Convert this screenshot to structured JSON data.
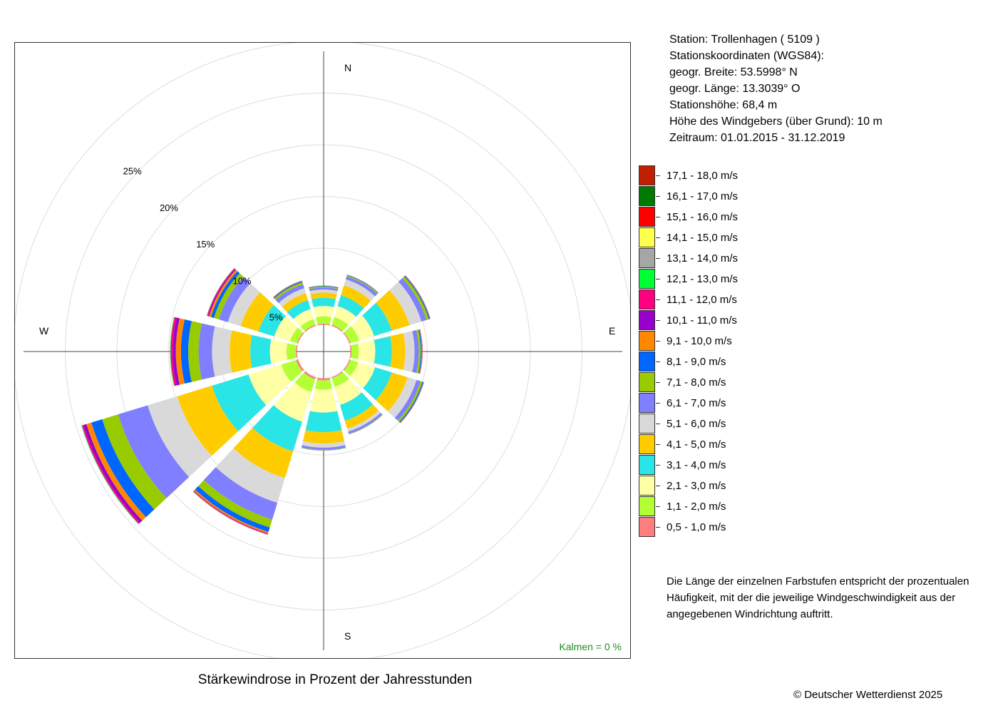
{
  "chart_data": {
    "type": "windrose",
    "title": "Stärkewindrose in Prozent der Jahresstunden",
    "directions_deg": [
      0,
      30,
      60,
      90,
      120,
      150,
      180,
      210,
      240,
      270,
      300,
      330
    ],
    "compass_labels": [
      "N",
      "E",
      "S",
      "W"
    ],
    "radial_ticks": [
      5,
      10,
      15,
      20,
      25
    ],
    "radial_tick_labels": [
      "5%",
      "10%",
      "15%",
      "20%",
      "25%"
    ],
    "inner_radius": 2.6,
    "max_radius": 30,
    "speed_classes": [
      {
        "label": "0,5 - 1,0 m/s",
        "color": "#ff7f7f"
      },
      {
        "label": "1,1 - 2,0 m/s",
        "color": "#b3ff33"
      },
      {
        "label": "2,1 - 3,0 m/s",
        "color": "#ffffa6"
      },
      {
        "label": "3,1 - 4,0 m/s",
        "color": "#29e5e5"
      },
      {
        "label": "4,1 - 5,0 m/s",
        "color": "#ffcc00"
      },
      {
        "label": "5,1 - 6,0 m/s",
        "color": "#d9d9d9"
      },
      {
        "label": "6,1 - 7,0 m/s",
        "color": "#7f7fff"
      },
      {
        "label": "7,1 - 8,0 m/s",
        "color": "#99cc00"
      },
      {
        "label": "8,1 - 9,0 m/s",
        "color": "#0066ff"
      },
      {
        "label": "9,1 - 10,0 m/s",
        "color": "#ff8800"
      },
      {
        "label": "10,1 - 11,0 m/s",
        "color": "#9900cc"
      },
      {
        "label": "11,1 - 12,0 m/s",
        "color": "#ff0080"
      },
      {
        "label": "12,1 - 13,0 m/s",
        "color": "#00ff33"
      },
      {
        "label": "13,1 - 14,0 m/s",
        "color": "#a6a6a6"
      },
      {
        "label": "14,1 - 15,0 m/s",
        "color": "#ffff4d"
      },
      {
        "label": "15,1 - 16,0 m/s",
        "color": "#ff0000"
      },
      {
        "label": "16,1 - 17,0 m/s",
        "color": "#007a00"
      },
      {
        "label": "17,1 - 18,0 m/s",
        "color": "#c02000"
      }
    ],
    "frequencies_percent": [
      [
        0.1,
        0.7,
        1.0,
        0.8,
        0.5,
        0.3,
        0.2,
        0.1,
        0.05,
        0.02,
        0.01,
        0,
        0,
        0,
        0,
        0,
        0,
        0
      ],
      [
        0.1,
        0.8,
        1.1,
        1.1,
        1.0,
        0.6,
        0.3,
        0.1,
        0.05,
        0.02,
        0.01,
        0,
        0,
        0,
        0,
        0,
        0,
        0
      ],
      [
        0.1,
        0.9,
        1.5,
        1.8,
        1.8,
        1.2,
        0.5,
        0.25,
        0.1,
        0.04,
        0.02,
        0.01,
        0,
        0,
        0,
        0,
        0,
        0
      ],
      [
        0.1,
        0.7,
        1.6,
        1.6,
        1.3,
        0.9,
        0.4,
        0.2,
        0.1,
        0.05,
        0.02,
        0.01,
        0,
        0,
        0,
        0,
        0,
        0
      ],
      [
        0.1,
        0.8,
        1.7,
        1.7,
        1.6,
        0.9,
        0.4,
        0.2,
        0.1,
        0.04,
        0.02,
        0,
        0,
        0,
        0,
        0,
        0,
        0
      ],
      [
        0.1,
        0.9,
        1.8,
        1.6,
        0.8,
        0.3,
        0.2,
        0.05,
        0.02,
        0.01,
        0,
        0,
        0,
        0,
        0,
        0,
        0,
        0
      ],
      [
        0.2,
        0.9,
        2.2,
        1.9,
        1.1,
        0.4,
        0.2,
        0.05,
        0.02,
        0.01,
        0,
        0,
        0,
        0,
        0,
        0,
        0,
        0
      ],
      [
        0.2,
        1.3,
        3.0,
        3.0,
        2.7,
        2.5,
        1.7,
        0.8,
        0.45,
        0.15,
        0.05,
        0.04,
        0.02,
        0.01,
        0,
        0.02,
        0,
        0
      ],
      [
        0.2,
        1.5,
        3.3,
        3.7,
        3.5,
        3.0,
        3.0,
        1.6,
        1.1,
        0.5,
        0.3,
        0.15,
        0.05,
        0.02,
        0,
        0,
        0,
        0
      ],
      [
        0.1,
        0.9,
        1.6,
        1.9,
        2.0,
        1.7,
        1.3,
        1.0,
        0.7,
        0.5,
        0.3,
        0.2,
        0.05,
        0.02,
        0,
        0,
        0,
        0
      ],
      [
        0.1,
        0.7,
        1.6,
        1.6,
        1.8,
        1.3,
        0.9,
        0.5,
        0.3,
        0.2,
        0.1,
        0.1,
        0.03,
        0.01,
        0,
        0,
        0,
        0
      ],
      [
        0.1,
        0.6,
        1.0,
        0.9,
        0.7,
        0.5,
        0.4,
        0.2,
        0.1,
        0.05,
        0.02,
        0.01,
        0,
        0,
        0,
        0,
        0,
        0
      ]
    ]
  },
  "kalmen": "Kalmen  =  0 %",
  "station_info": {
    "station": "Station:  Trollenhagen  ( 5109 )",
    "coords_header": "Stationskoordinaten (WGS84):",
    "lat": "geogr. Breite: 53.5998° N",
    "lon": "geogr. Länge: 13.3039° O",
    "height": "Stationshöhe: 68,4 m",
    "sensor_height": "Höhe des Windgebers (über Grund): 10 m",
    "period": "Zeitraum: 01.01.2015 - 31.12.2019"
  },
  "note": "Die Länge der einzelnen Farbstufen entspricht der prozentualen Häufigkeit, mit der die jeweilige Windgeschwindigkeit aus der angegebenen Windrichtung auftritt.",
  "copyright": "© Deutscher Wetterdienst  2025"
}
